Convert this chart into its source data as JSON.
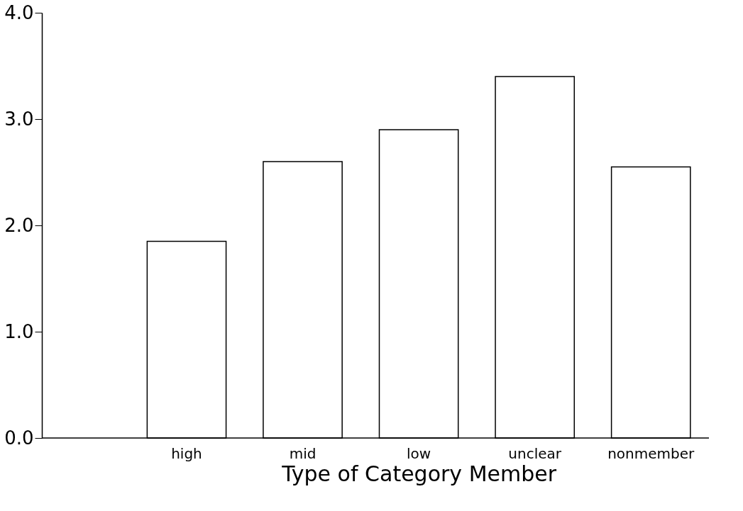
{
  "chart_data": {
    "type": "bar",
    "xlabel": "Type of Category Member",
    "categories": [
      "high",
      "mid",
      "low",
      "unclear",
      "nonmember"
    ],
    "values": [
      1.85,
      2.6,
      2.9,
      3.4,
      2.55
    ],
    "color": "#ffffff",
    "ylim": [
      0,
      4
    ],
    "yticks": [
      {
        "value": 0,
        "label": "0.0"
      },
      {
        "value": 1,
        "label": "1.0"
      },
      {
        "value": 2,
        "label": "2.0"
      },
      {
        "value": 3,
        "label": "3.0"
      },
      {
        "value": 4,
        "label": "4.0"
      }
    ],
    "grid": false
  }
}
